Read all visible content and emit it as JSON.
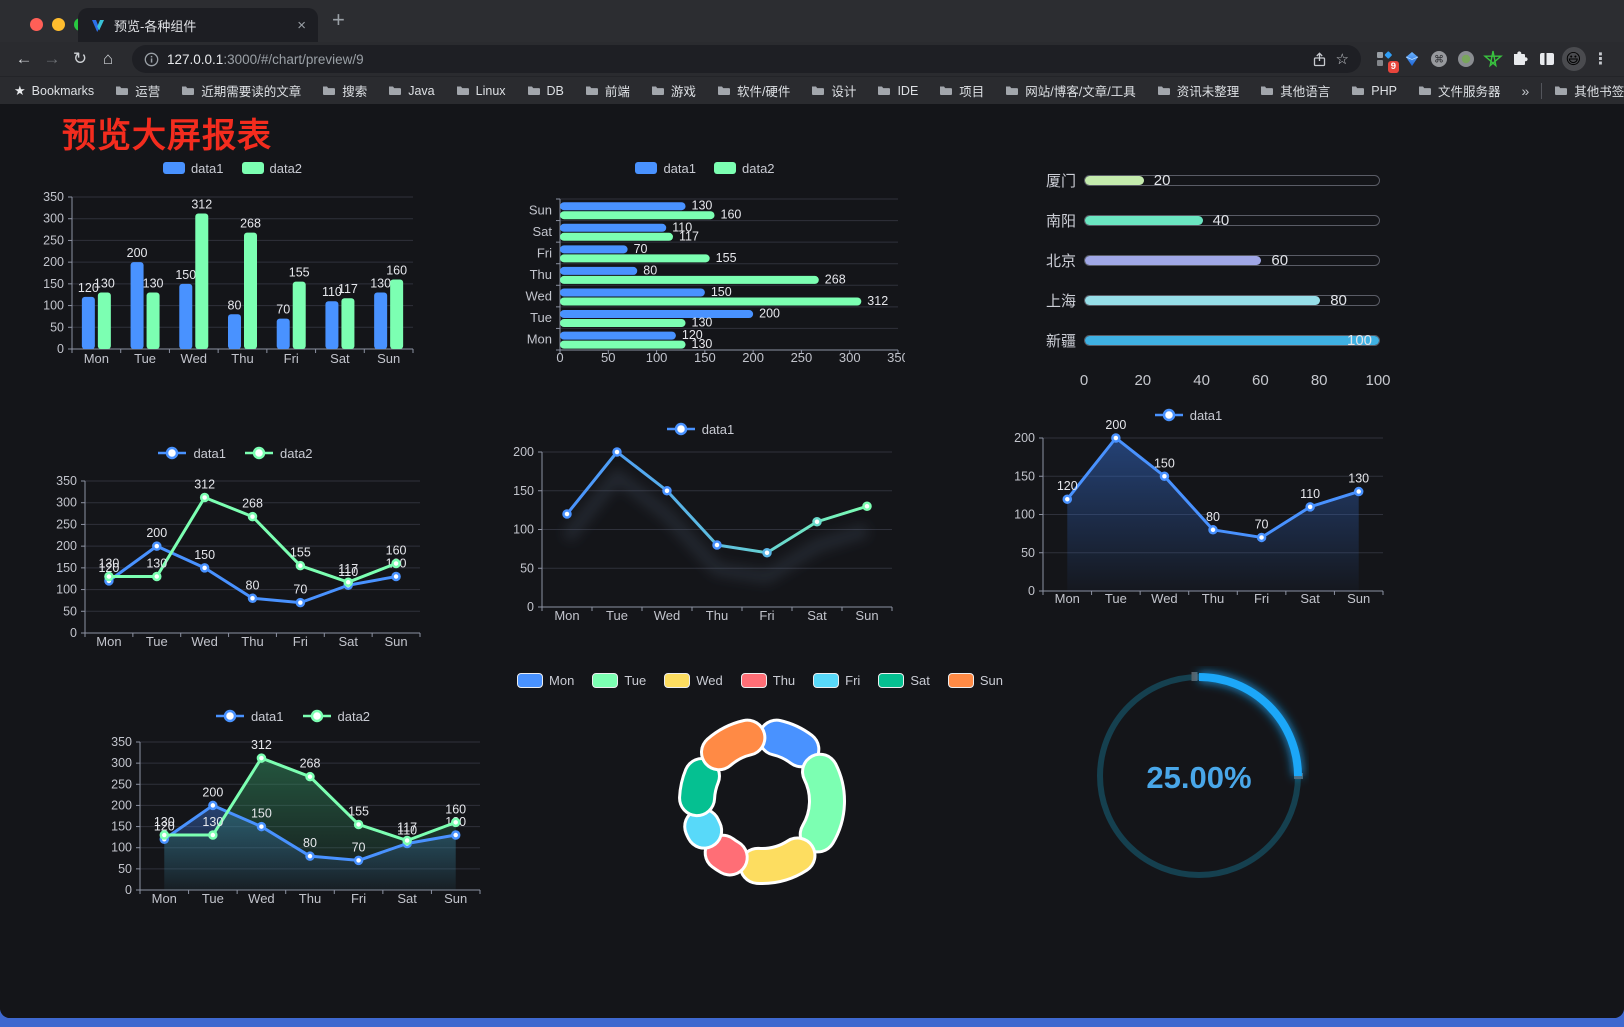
{
  "browser": {
    "tab": {
      "title": "预览-各种组件",
      "close_label": "×"
    },
    "new_tab_label": "+",
    "address": {
      "host": "127.0.0.1",
      "path": ":3000/#/chart/preview/9"
    },
    "toolbar_icons": {
      "back": "←",
      "forward": "→",
      "reload": "↻",
      "home": "⌂",
      "bookmark_star": "☆",
      "menu": "⋮",
      "avatar": "😃",
      "extensions_badge": "9"
    },
    "bookmarks": {
      "root_label": "Bookmarks",
      "folders": [
        "运营",
        "近期需要读的文章",
        "搜索",
        "Java",
        "Linux",
        "DB",
        "前端",
        "游戏",
        "软件/硬件",
        "设计",
        "IDE",
        "项目",
        "网站/博客/文章/工具",
        "资讯未整理",
        "其他语言",
        "PHP",
        "文件服务器"
      ],
      "overflow_label": "»",
      "other_label": "其他书签"
    }
  },
  "page": {
    "title": "预览大屏报表",
    "title_color": "#f32c1e"
  },
  "theme": {
    "background": "#141519",
    "axis_line": "#8d92a2",
    "grid_line": "#2f313b",
    "tick_label": "#c2c4cc",
    "value_label": "#e6e7ec",
    "legend_text": "#c9cbd3"
  },
  "chart_data": [
    {
      "id": "grouped-bar",
      "type": "bar",
      "categories": [
        "Mon",
        "Tue",
        "Wed",
        "Thu",
        "Fri",
        "Sat",
        "Sun"
      ],
      "series": [
        {
          "name": "data1",
          "color": "#4992ff",
          "values": [
            120,
            200,
            150,
            80,
            70,
            110,
            130
          ]
        },
        {
          "name": "data2",
          "color": "#7cffb2",
          "values": [
            130,
            130,
            312,
            268,
            155,
            117,
            160
          ]
        }
      ],
      "ylim": [
        0,
        350
      ],
      "ytick": 50,
      "show_labels": true,
      "legend_position": "top"
    },
    {
      "id": "grouped-hbar",
      "type": "bar-horizontal",
      "categories": [
        "Mon",
        "Tue",
        "Wed",
        "Thu",
        "Fri",
        "Sat",
        "Sun"
      ],
      "display_order_top_to_bottom": [
        "Sun",
        "Sat",
        "Fri",
        "Thu",
        "Wed",
        "Tue",
        "Mon"
      ],
      "series": [
        {
          "name": "data1",
          "color": "#4992ff",
          "values": [
            120,
            200,
            150,
            80,
            70,
            110,
            130
          ]
        },
        {
          "name": "data2",
          "color": "#7cffb2",
          "values": [
            130,
            130,
            312,
            268,
            155,
            117,
            160
          ]
        }
      ],
      "xlim": [
        0,
        350
      ],
      "xtick": 50,
      "show_labels": true,
      "legend_position": "top"
    },
    {
      "id": "city-progress",
      "type": "bar-horizontal-progress",
      "categories": [
        "厦门",
        "南阳",
        "北京",
        "上海",
        "新疆"
      ],
      "values": [
        20,
        40,
        60,
        80,
        100
      ],
      "colors": [
        "#c4ebad",
        "#6be6c1",
        "#a0a7e6",
        "#96dee8",
        "#3fb1e3"
      ],
      "xlim": [
        0,
        100
      ],
      "xticks": [
        0,
        20,
        40,
        60,
        80,
        100
      ],
      "show_labels": true
    },
    {
      "id": "multi-line",
      "type": "line",
      "categories": [
        "Mon",
        "Tue",
        "Wed",
        "Thu",
        "Fri",
        "Sat",
        "Sun"
      ],
      "series": [
        {
          "name": "data1",
          "color": "#4992ff",
          "values": [
            120,
            200,
            150,
            80,
            70,
            110,
            130
          ]
        },
        {
          "name": "data2",
          "color": "#7cffb2",
          "values": [
            130,
            130,
            312,
            268,
            155,
            117,
            160
          ]
        }
      ],
      "ylim": [
        0,
        350
      ],
      "ytick": 50,
      "show_labels": true,
      "legend_position": "top"
    },
    {
      "id": "gradient-line",
      "type": "line",
      "categories": [
        "Mon",
        "Tue",
        "Wed",
        "Thu",
        "Fri",
        "Sat",
        "Sun"
      ],
      "series": [
        {
          "name": "data1",
          "gradient": [
            "#4992ff",
            "#7cffb2"
          ],
          "values": [
            120,
            200,
            150,
            80,
            70,
            110,
            130
          ]
        }
      ],
      "ylim": [
        0,
        200
      ],
      "ytick": 50,
      "show_labels": false,
      "legend_position": "top"
    },
    {
      "id": "area-line",
      "type": "area",
      "categories": [
        "Mon",
        "Tue",
        "Wed",
        "Thu",
        "Fri",
        "Sat",
        "Sun"
      ],
      "series": [
        {
          "name": "data1",
          "color": "#4992ff",
          "area_fill": [
            "rgba(52,110,210,0.50)",
            "rgba(52,110,210,0.03)"
          ],
          "values": [
            120,
            200,
            150,
            80,
            70,
            110,
            130
          ]
        }
      ],
      "ylim": [
        0,
        200
      ],
      "ytick": 50,
      "show_labels": true,
      "legend_position": "top"
    },
    {
      "id": "multi-area-line",
      "type": "area",
      "categories": [
        "Mon",
        "Tue",
        "Wed",
        "Thu",
        "Fri",
        "Sat",
        "Sun"
      ],
      "series": [
        {
          "name": "data1",
          "color": "#4992ff",
          "area_fill": [
            "rgba(62,120,220,0.45)",
            "rgba(62,120,220,0.04)"
          ],
          "values": [
            120,
            200,
            150,
            80,
            70,
            110,
            130
          ]
        },
        {
          "name": "data2",
          "color": "#7cffb2",
          "area_fill": [
            "rgba(52,150,100,0.50)",
            "rgba(52,150,100,0.04)"
          ],
          "values": [
            130,
            130,
            312,
            268,
            155,
            117,
            160
          ]
        }
      ],
      "ylim": [
        0,
        350
      ],
      "ytick": 50,
      "show_labels": true,
      "legend_position": "top"
    },
    {
      "id": "donut-pie",
      "type": "pie",
      "categories": [
        "Mon",
        "Tue",
        "Wed",
        "Thu",
        "Fri",
        "Sat",
        "Sun"
      ],
      "values": [
        120,
        200,
        150,
        80,
        70,
        110,
        130
      ],
      "colors": [
        "#4992ff",
        "#7cffb2",
        "#fddd60",
        "#ff6e76",
        "#58d9f9",
        "#05c091",
        "#ff8a45"
      ],
      "legend_position": "top"
    },
    {
      "id": "gauge",
      "type": "gauge",
      "percent": 25,
      "value_label": "25.00%",
      "arc_color": "#1aa7f8",
      "track_color": "#15404f",
      "text_color": "#49a7e9"
    }
  ]
}
